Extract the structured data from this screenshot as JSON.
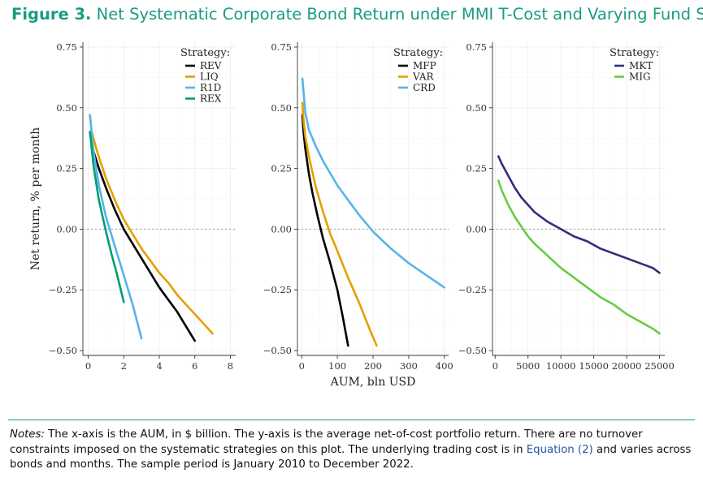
{
  "figure": {
    "label": "Figure 3.",
    "title": "Net Systematic Corporate Bond Return under MMI T-Cost and Varying Fund Size"
  },
  "notes": {
    "label": "Notes:",
    "text_before": " The x-axis is the AUM, in $ billion. The y-axis is the average net-of-cost portfolio return. There are no turnover constraints imposed on the systematic strategies on this plot. The underlying trading cost is in ",
    "link": "Equation (2)",
    "text_after": " and varies across bonds and months. The sample period is January 2010 to December 2022."
  },
  "colors": {
    "title": "#1a9b82",
    "link": "#2456a8"
  },
  "chart_data": [
    {
      "type": "line",
      "xlabel": "",
      "ylabel": "Net return, % per month",
      "xlim": [
        -0.3,
        8.3
      ],
      "ylim": [
        -0.52,
        0.77
      ],
      "xticks": [
        0,
        2,
        4,
        6,
        8
      ],
      "yticks": [
        -0.5,
        -0.25,
        0,
        0.25,
        0.5,
        0.75
      ],
      "ytick_labels": [
        "−0.50",
        "−0.25",
        "0.00",
        "0.25",
        "0.50",
        "0.75"
      ],
      "reference_line": 0,
      "legend": {
        "title": "Strategy:",
        "placement": "top-right"
      },
      "series": [
        {
          "name": "REV",
          "color": "#000000",
          "x": [
            0.1,
            0.3,
            0.6,
            1,
            1.5,
            2,
            2.5,
            3,
            3.5,
            4,
            4.5,
            5,
            5.5,
            6
          ],
          "y": [
            0.4,
            0.32,
            0.25,
            0.17,
            0.08,
            0.0,
            -0.06,
            -0.12,
            -0.18,
            -0.24,
            -0.29,
            -0.34,
            -0.4,
            -0.46
          ]
        },
        {
          "name": "LIQ",
          "color": "#e69f00",
          "x": [
            0.2,
            0.5,
            1,
            1.5,
            2,
            2.5,
            3,
            3.5,
            4,
            4.5,
            5,
            5.5,
            6,
            6.5,
            7
          ],
          "y": [
            0.4,
            0.32,
            0.21,
            0.12,
            0.04,
            -0.02,
            -0.08,
            -0.13,
            -0.18,
            -0.22,
            -0.27,
            -0.31,
            -0.35,
            -0.39,
            -0.43
          ]
        },
        {
          "name": "R1D",
          "color": "#56b4e9",
          "x": [
            0.1,
            0.3,
            0.6,
            1,
            1.5,
            2,
            2.5,
            3
          ],
          "y": [
            0.47,
            0.32,
            0.18,
            0.05,
            -0.07,
            -0.19,
            -0.31,
            -0.45
          ]
        },
        {
          "name": "REX",
          "color": "#009e73",
          "x": [
            0.1,
            0.3,
            0.6,
            1,
            1.3,
            1.6,
            2
          ],
          "y": [
            0.4,
            0.26,
            0.12,
            -0.01,
            -0.1,
            -0.18,
            -0.3
          ]
        }
      ]
    },
    {
      "type": "line",
      "xlabel": "AUM, bln USD",
      "ylabel": "",
      "xlim": [
        -12,
        412
      ],
      "ylim": [
        -0.52,
        0.77
      ],
      "xticks": [
        0,
        100,
        200,
        300,
        400
      ],
      "yticks": [
        -0.5,
        -0.25,
        0,
        0.25,
        0.5,
        0.75
      ],
      "ytick_labels": [
        "−0.50",
        "−0.25",
        "0.00",
        "0.25",
        "0.50",
        "0.75"
      ],
      "reference_line": 0,
      "legend": {
        "title": "Strategy:",
        "placement": "top-right"
      },
      "series": [
        {
          "name": "MFP",
          "color": "#000000",
          "x": [
            2,
            5,
            10,
            20,
            30,
            45,
            60,
            80,
            100,
            115,
            130
          ],
          "y": [
            0.47,
            0.4,
            0.33,
            0.23,
            0.15,
            0.05,
            -0.04,
            -0.14,
            -0.25,
            -0.36,
            -0.48
          ]
        },
        {
          "name": "VAR",
          "color": "#e69f00",
          "x": [
            2,
            5,
            10,
            20,
            40,
            60,
            80,
            100,
            130,
            160,
            190,
            210
          ],
          "y": [
            0.52,
            0.45,
            0.38,
            0.3,
            0.17,
            0.07,
            -0.02,
            -0.09,
            -0.2,
            -0.3,
            -0.41,
            -0.48
          ]
        },
        {
          "name": "CRD",
          "color": "#56b4e9",
          "x": [
            2,
            10,
            20,
            40,
            60,
            80,
            100,
            130,
            160,
            200,
            250,
            300,
            350,
            400
          ],
          "y": [
            0.62,
            0.48,
            0.41,
            0.34,
            0.28,
            0.23,
            0.18,
            0.12,
            0.06,
            -0.01,
            -0.08,
            -0.14,
            -0.19,
            -0.24
          ]
        }
      ]
    },
    {
      "type": "line",
      "xlabel": "",
      "ylabel": "",
      "xlim": [
        -400,
        25800
      ],
      "ylim": [
        -0.52,
        0.77
      ],
      "xticks": [
        0,
        5000,
        10000,
        15000,
        20000,
        25000
      ],
      "yticks": [
        -0.5,
        -0.25,
        0,
        0.25,
        0.5,
        0.75
      ],
      "ytick_labels": [
        "−0.50",
        "−0.25",
        "0.00",
        "0.25",
        "0.50",
        "0.75"
      ],
      "reference_line": 0,
      "legend": {
        "title": "Strategy:",
        "placement": "top-right"
      },
      "series": [
        {
          "name": "MKT",
          "color": "#2f2f7a",
          "x": [
            500,
            1000,
            2000,
            3000,
            4000,
            5000,
            6000,
            8000,
            10000,
            12000,
            14000,
            16000,
            18000,
            20000,
            22000,
            24000,
            25000
          ],
          "y": [
            0.3,
            0.27,
            0.22,
            0.17,
            0.13,
            0.1,
            0.07,
            0.03,
            0.0,
            -0.03,
            -0.05,
            -0.08,
            -0.1,
            -0.12,
            -0.14,
            -0.16,
            -0.18
          ]
        },
        {
          "name": "MIG",
          "color": "#66cc44",
          "x": [
            500,
            1000,
            2000,
            3000,
            4000,
            5000,
            6000,
            8000,
            10000,
            12000,
            14000,
            16000,
            18000,
            20000,
            22000,
            24000,
            25000
          ],
          "y": [
            0.2,
            0.16,
            0.1,
            0.05,
            0.01,
            -0.03,
            -0.06,
            -0.11,
            -0.16,
            -0.2,
            -0.24,
            -0.28,
            -0.31,
            -0.35,
            -0.38,
            -0.41,
            -0.43
          ]
        }
      ]
    }
  ]
}
